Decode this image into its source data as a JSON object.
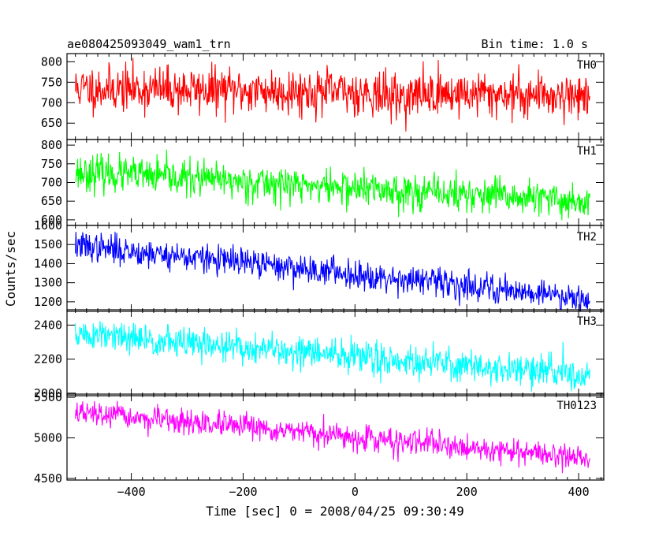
{
  "header": {
    "title": "ae080425093049_wam1_trn",
    "bin_time": "Bin time: 1.0 s"
  },
  "chart_data": {
    "type": "line",
    "xlabel": "Time [sec] 0 = 2008/04/25 09:30:49",
    "ylabel": "Counts/sec",
    "xlim": [
      -515,
      445
    ],
    "x_range": [
      -500,
      420
    ],
    "xticks": [
      -400,
      -200,
      0,
      200,
      400
    ],
    "panels": [
      {
        "name": "TH0",
        "color": "#ff0000",
        "ylim": [
          610,
          820
        ],
        "yticks": [
          650,
          700,
          750,
          800
        ],
        "start": 735,
        "end": 718,
        "noise": 28,
        "seed": 11,
        "dip": true
      },
      {
        "name": "TH1",
        "color": "#00ff00",
        "ylim": [
          585,
          815
        ],
        "yticks": [
          600,
          650,
          700,
          750,
          800
        ],
        "start": 728,
        "end": 648,
        "noise": 24,
        "seed": 23
      },
      {
        "name": "TH2",
        "color": "#0000ff",
        "ylim": [
          1150,
          1600
        ],
        "yticks": [
          1200,
          1300,
          1400,
          1500,
          1600
        ],
        "start": 1495,
        "end": 1220,
        "noise": 38,
        "seed": 37
      },
      {
        "name": "TH3",
        "color": "#00ffff",
        "ylim": [
          1985,
          2490
        ],
        "yticks": [
          2000,
          2200,
          2400
        ],
        "start": 2345,
        "end": 2105,
        "noise": 48,
        "seed": 51
      },
      {
        "name": "TH0123",
        "color": "#ff00ff",
        "ylim": [
          4480,
          5540
        ],
        "yticks": [
          4500,
          5000,
          5500
        ],
        "start": 5310,
        "end": 4750,
        "noise": 75,
        "seed": 67
      }
    ]
  }
}
